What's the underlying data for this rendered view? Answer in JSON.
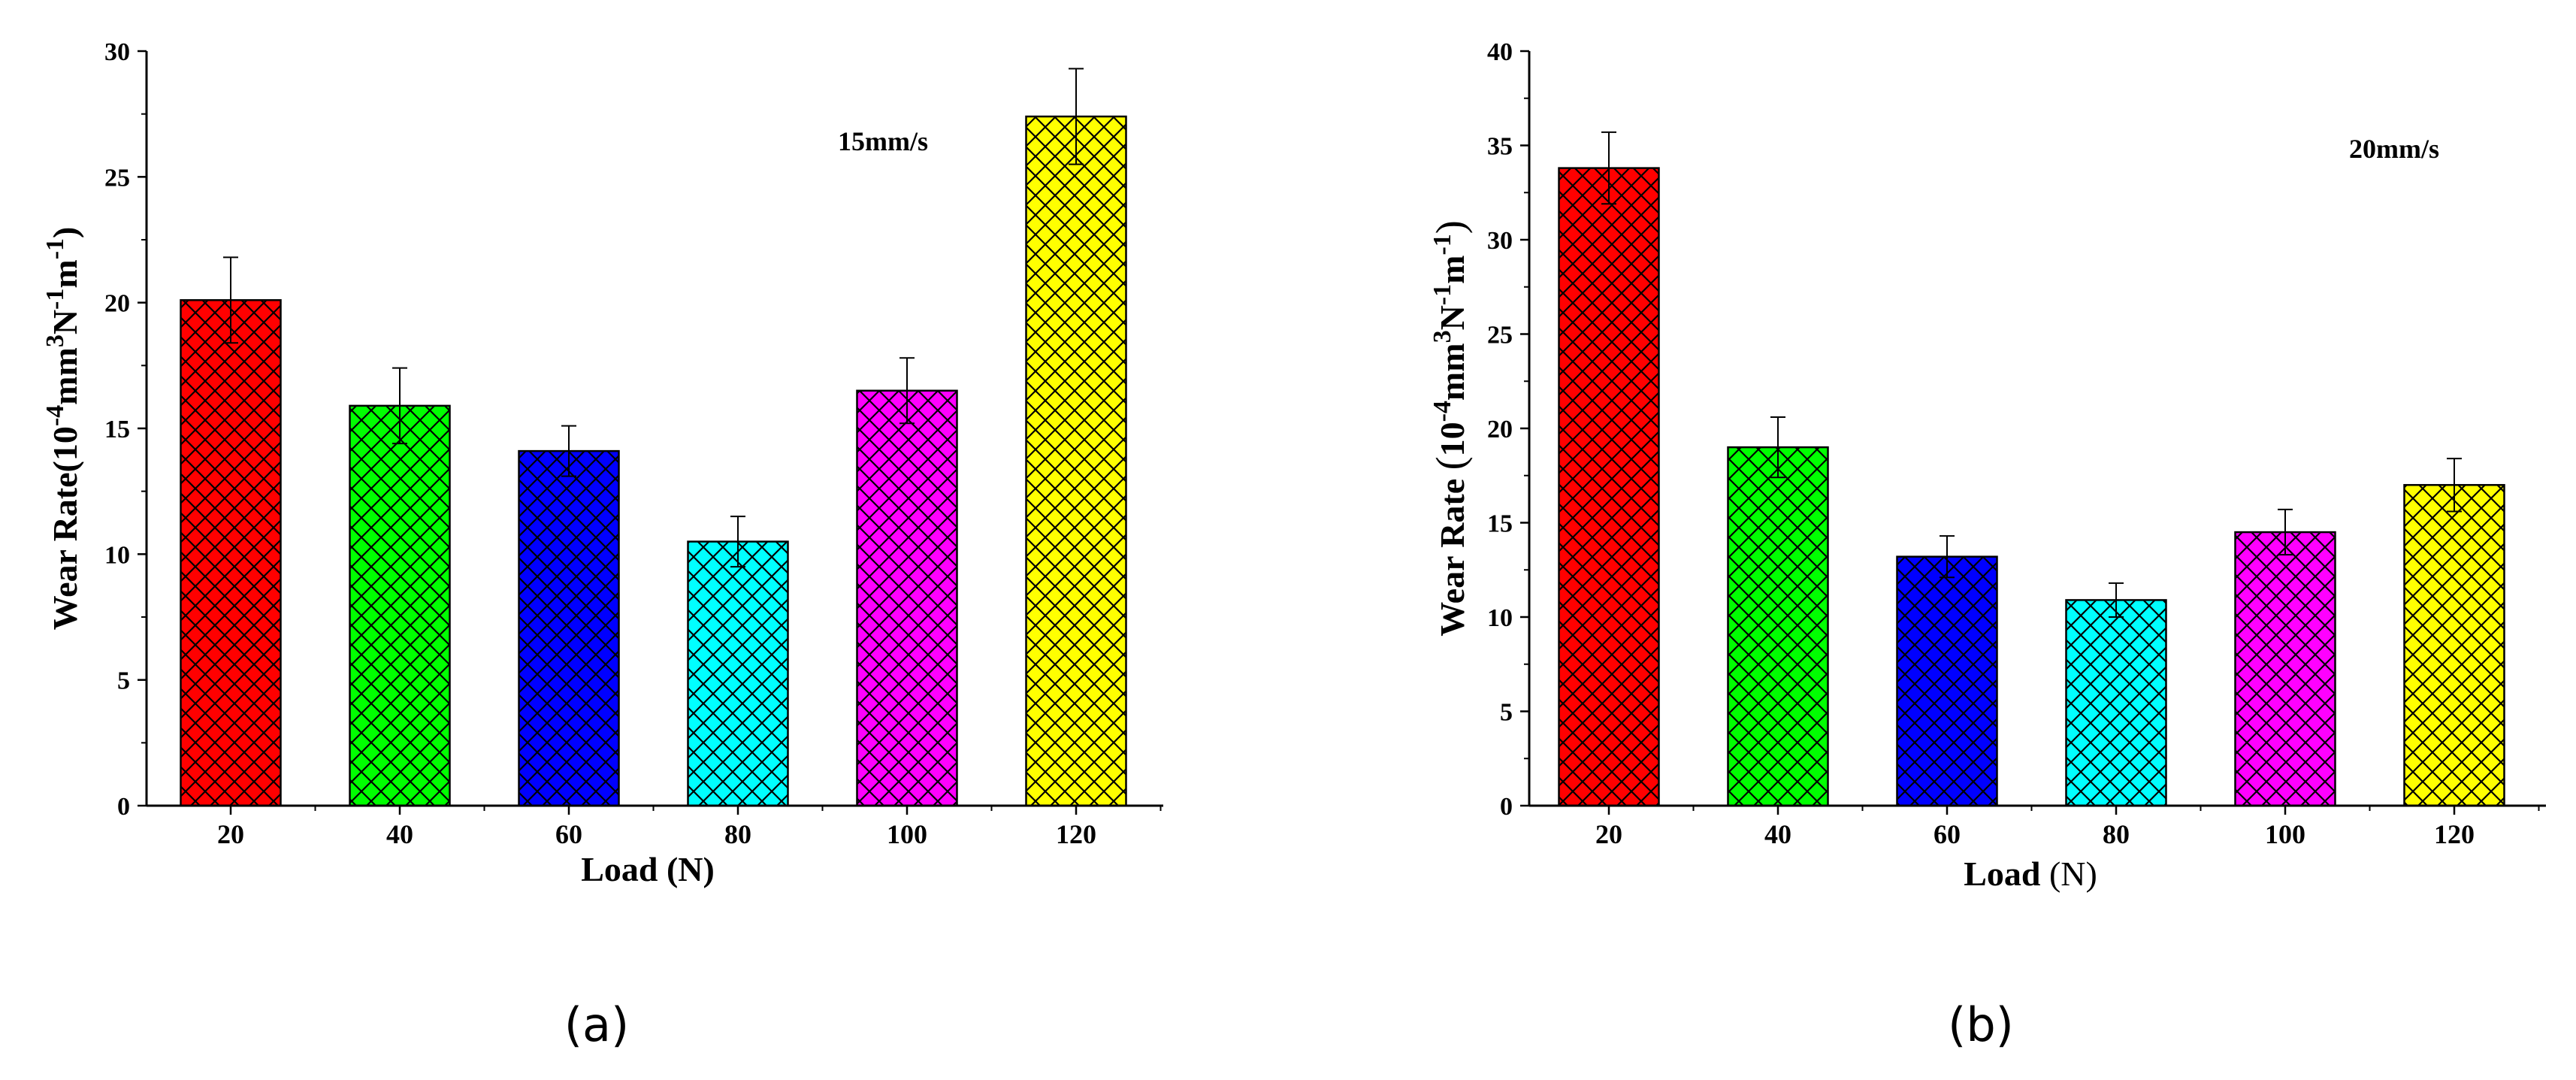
{
  "chart_data": [
    {
      "type": "bar",
      "panel": "a",
      "caption": "(a)",
      "annotation": "15mm/s",
      "xlabel": "Load (N)",
      "ylabel": "Wear Rate(10-4mm3N-1m-1)",
      "categories": [
        "20",
        "40",
        "60",
        "80",
        "100",
        "120"
      ],
      "values": [
        20.1,
        15.9,
        14.1,
        10.5,
        16.5,
        27.4
      ],
      "errors": [
        1.7,
        1.5,
        1.0,
        1.0,
        1.3,
        1.9
      ],
      "colors": [
        "#ff0000",
        "#00ff00",
        "#0000ff",
        "#00ffff",
        "#ff00ff",
        "#ffff00"
      ],
      "ylim": [
        0,
        30
      ],
      "yticks": [
        0,
        5,
        10,
        15,
        20,
        25,
        30
      ]
    },
    {
      "type": "bar",
      "panel": "b",
      "caption": "(b)",
      "annotation": "20mm/s",
      "xlabel": "Load (N)",
      "ylabel": "Wear Rate (10-4mm3N-1m-1)",
      "categories": [
        "20",
        "40",
        "60",
        "80",
        "100",
        "120"
      ],
      "values": [
        33.8,
        19.0,
        13.2,
        10.9,
        14.5,
        17.0
      ],
      "errors": [
        1.9,
        1.6,
        1.1,
        0.9,
        1.2,
        1.4
      ],
      "colors": [
        "#ff0000",
        "#00ff00",
        "#0000ff",
        "#00ffff",
        "#ff00ff",
        "#ffff00"
      ],
      "ylim": [
        0,
        40
      ],
      "yticks": [
        0,
        5,
        10,
        15,
        20,
        25,
        30,
        35,
        40
      ]
    }
  ]
}
